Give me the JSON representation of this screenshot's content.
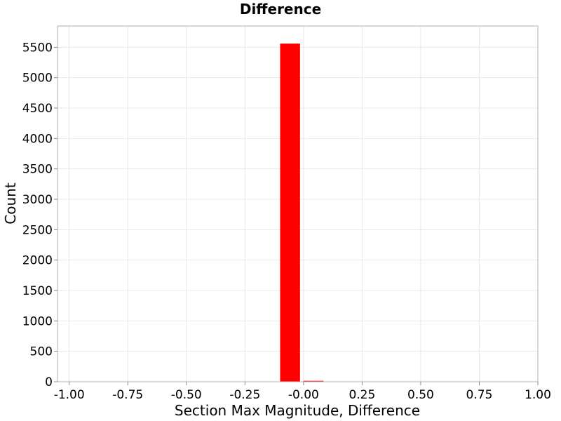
{
  "chart_data": {
    "type": "bar",
    "title": "Difference",
    "xlabel": "Section Max Magnitude, Difference",
    "ylabel": "Count",
    "xlim": [
      -1.05,
      1.0
    ],
    "ylim": [
      0,
      5850
    ],
    "x_ticks": [
      -1.0,
      -0.75,
      -0.5,
      -0.25,
      0.0,
      0.25,
      0.5,
      0.75,
      1.0
    ],
    "x_tick_labels": [
      "-1.00",
      "-0.75",
      "-0.50",
      "-0.25",
      "-0.00",
      "0.25",
      "0.50",
      "0.75",
      "1.00"
    ],
    "y_ticks": [
      0,
      500,
      1000,
      1500,
      2000,
      2500,
      3000,
      3500,
      4000,
      4500,
      5000,
      5500
    ],
    "y_tick_labels": [
      "0",
      "500",
      "1000",
      "1500",
      "2000",
      "2500",
      "3000",
      "3500",
      "4000",
      "4500",
      "5000",
      "5500"
    ],
    "bars": [
      {
        "x0": -0.1,
        "x1": -0.015,
        "value": 5560
      },
      {
        "x0": -0.0,
        "x1": 0.085,
        "value": 15
      }
    ],
    "bar_color": "#ff0000",
    "grid": true
  }
}
